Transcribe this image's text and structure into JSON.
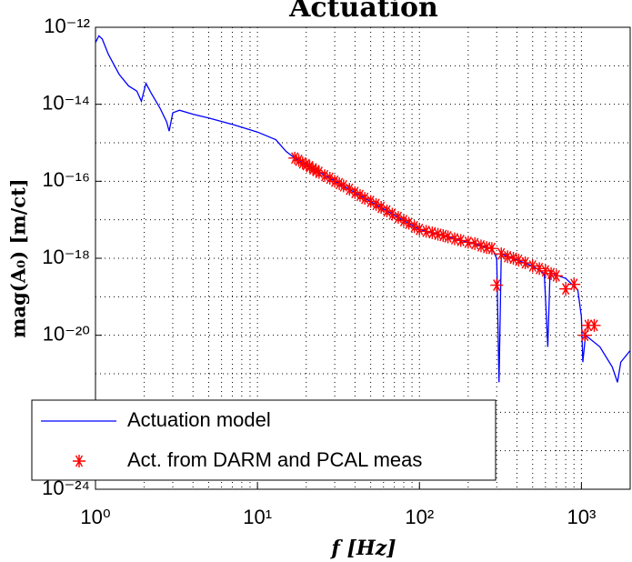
{
  "chart_data": {
    "type": "line",
    "title": "Actuation",
    "xlabel": "f [Hz]",
    "ylabel": "mag(A₀) [m/ct]",
    "xscale": "log",
    "yscale": "log",
    "grid": true,
    "legend": "lower left",
    "xlim": [
      1,
      2000
    ],
    "ylim": [
      1e-24,
      1e-12
    ],
    "xticks": [
      {
        "value": 1,
        "label": "10⁰"
      },
      {
        "value": 10,
        "label": "10¹"
      },
      {
        "value": 100,
        "label": "10²"
      },
      {
        "value": 1000,
        "label": "10³"
      }
    ],
    "yticks": [
      {
        "value": 1e-24,
        "label": "10⁻²⁴"
      },
      {
        "value": 1e-22,
        "label": "10⁻²²"
      },
      {
        "value": 1e-20,
        "label": "10⁻²⁰"
      },
      {
        "value": 1e-18,
        "label": "10⁻¹⁸"
      },
      {
        "value": 1e-16,
        "label": "10⁻¹⁶"
      },
      {
        "value": 1e-14,
        "label": "10⁻¹⁴"
      },
      {
        "value": 1e-12,
        "label": "10⁻¹²"
      }
    ],
    "series": [
      {
        "name": "Actuation model",
        "color": "#0000ff",
        "marker": "none",
        "x": [
          1,
          1.05,
          1.1,
          1.2,
          1.4,
          1.6,
          1.8,
          1.92,
          2.05,
          2.2,
          2.5,
          2.75,
          2.85,
          3.0,
          3.3,
          4,
          5,
          7,
          10,
          13,
          15,
          17,
          100,
          200,
          280,
          300,
          310,
          320,
          500,
          590,
          620,
          640,
          800,
          950,
          1000,
          1020,
          1060,
          1300,
          1550,
          1670,
          1750,
          2000
        ],
        "values": [
          4e-13,
          6e-13,
          5e-13,
          2e-13,
          6e-14,
          3e-14,
          2.2e-14,
          1.2e-14,
          3.5e-14,
          2e-14,
          8e-15,
          3.5e-15,
          2e-15,
          6e-15,
          7e-15,
          5.5e-15,
          4.4e-15,
          3e-15,
          1.9e-15,
          1.2e-15,
          6e-16,
          4e-16,
          5.6e-18,
          2.6e-18,
          1.8e-18,
          1e-18,
          6e-22,
          1.3e-18,
          6.3e-19,
          4e-19,
          5e-21,
          4.2e-19,
          3e-19,
          1.5e-19,
          3e-20,
          2e-21,
          1e-20,
          5e-21,
          1.5e-21,
          6e-22,
          2e-21,
          4e-21
        ]
      },
      {
        "name": "Act. from DARM and PCAL meas",
        "color": "#ff0000",
        "marker": "star",
        "x": [
          17,
          18,
          19,
          20,
          21,
          22,
          23,
          24,
          26,
          28,
          30,
          32,
          34,
          37,
          40,
          43,
          46,
          50,
          54,
          58,
          63,
          68,
          74,
          80,
          86,
          93,
          100,
          110,
          120,
          130,
          140,
          150,
          165,
          180,
          200,
          220,
          240,
          260,
          280,
          300,
          320,
          350,
          380,
          410,
          450,
          500,
          550,
          600,
          650,
          700,
          800,
          900,
          1050,
          1100,
          1200
        ],
        "values": [
          4e-16,
          3.5e-16,
          3e-16,
          2.7e-16,
          2.4e-16,
          2.1e-16,
          1.9e-16,
          1.7e-16,
          1.4e-16,
          1.2e-16,
          1e-16,
          8.7e-17,
          7.6e-17,
          6.2e-17,
          5.1e-17,
          4.3e-17,
          3.6e-17,
          3e-17,
          2.5e-17,
          2.1e-17,
          1.7e-17,
          1.4e-17,
          1.15e-17,
          9.5e-18,
          8.1e-18,
          6.6e-18,
          5.6e-18,
          5e-18,
          4.6e-18,
          4.2e-18,
          3.9e-18,
          3.6e-18,
          3.2e-18,
          2.9e-18,
          2.6e-18,
          2.4e-18,
          2.1e-18,
          1.9e-18,
          1.8e-18,
          2e-19,
          1.3e-18,
          1.1e-18,
          1e-18,
          8.9e-19,
          7.6e-19,
          6.3e-19,
          5.4e-19,
          4.7e-19,
          4e-19,
          3.5e-19,
          1.6e-19,
          2.1e-19,
          1e-20,
          1.8e-20,
          1.8e-20
        ]
      }
    ]
  }
}
